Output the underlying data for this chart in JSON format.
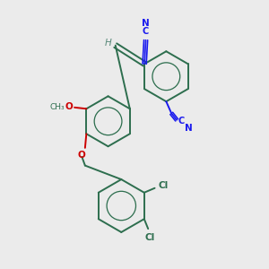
{
  "background_color": "#ebebeb",
  "bond_color": "#2d6e4e",
  "cn_color": "#1a1aee",
  "cl_color": "#2d6e4e",
  "o_color": "#cc0000",
  "h_color": "#5a8a7a",
  "figsize": [
    3.0,
    3.0
  ],
  "dpi": 100,
  "xlim": [
    0,
    10
  ],
  "ylim": [
    0,
    10
  ]
}
